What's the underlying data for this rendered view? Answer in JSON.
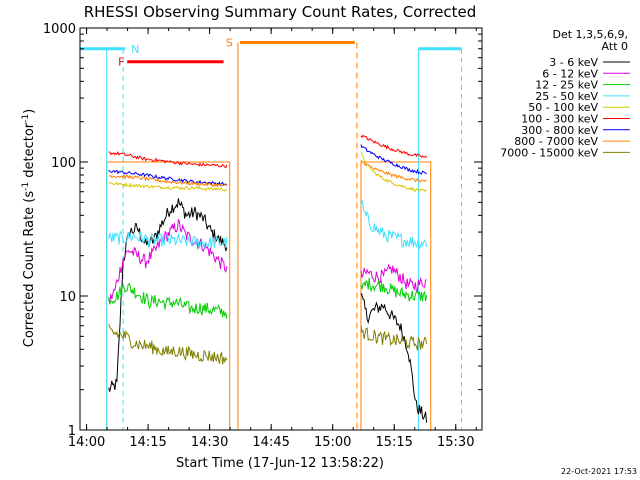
{
  "chart_data": {
    "type": "line",
    "title": "RHESSI Observing Summary Count Rates, Corrected",
    "xlabel": "Start Time (17-Jun-12 13:58:22)",
    "ylabel_main": "Corrected Count Rate (s",
    "ylabel_sup1": "-1",
    "ylabel_mid": " detector",
    "ylabel_sup2": "-1",
    "ylabel_end": ")",
    "x_start_label": "13:58:22",
    "xlim_minutes": [
      0,
      98
    ],
    "ylim": [
      1,
      1000
    ],
    "y_scale": "log",
    "x_ticks": [
      {
        "label": "14:00",
        "t": 1.6
      },
      {
        "label": "14:15",
        "t": 16.6
      },
      {
        "label": "14:30",
        "t": 31.6
      },
      {
        "label": "14:45",
        "t": 46.6
      },
      {
        "label": "15:00",
        "t": 61.6
      },
      {
        "label": "15:15",
        "t": 76.6
      },
      {
        "label": "15:30",
        "t": 91.6
      }
    ],
    "y_ticks": [
      {
        "label": "1",
        "v": 1
      },
      {
        "label": "10",
        "v": 10
      },
      {
        "label": "100",
        "v": 100
      },
      {
        "label": "1000",
        "v": 1000
      }
    ],
    "legend": {
      "header_line1": "Det 1,3,5,6,9,",
      "header_line2": "Att 0",
      "placement": "right"
    },
    "footer_date": "22-Oct-2021 17:53",
    "series": [
      {
        "name": "3 - 6 keV",
        "color": "#000000",
        "seg1": [
          [
            7.0,
            2.0
          ],
          [
            9.0,
            2.2
          ],
          [
            10.5,
            18
          ],
          [
            12,
            30
          ],
          [
            14,
            32
          ],
          [
            16,
            24
          ],
          [
            18,
            26
          ],
          [
            20,
            35
          ],
          [
            22,
            45
          ],
          [
            24,
            50
          ],
          [
            26,
            40
          ],
          [
            28,
            42
          ],
          [
            30,
            38
          ],
          [
            32,
            30
          ],
          [
            34,
            26
          ],
          [
            35.8,
            24
          ]
        ],
        "seg2": [
          [
            68.5,
            10
          ],
          [
            70,
            7
          ],
          [
            72,
            8
          ],
          [
            74,
            8.5
          ],
          [
            76,
            7
          ],
          [
            78,
            6
          ],
          [
            80,
            4
          ],
          [
            82,
            1.5
          ],
          [
            84.5,
            1.2
          ]
        ]
      },
      {
        "name": "6 - 12 keV",
        "color": "#e000e0",
        "seg1": [
          [
            7.0,
            9
          ],
          [
            8.5,
            11
          ],
          [
            10.5,
            19
          ],
          [
            12,
            22
          ],
          [
            14,
            20
          ],
          [
            16,
            18
          ],
          [
            18,
            21
          ],
          [
            20,
            26
          ],
          [
            22,
            30
          ],
          [
            24,
            34
          ],
          [
            26,
            28
          ],
          [
            28,
            26
          ],
          [
            30,
            24
          ],
          [
            32,
            21
          ],
          [
            34,
            18
          ],
          [
            35.8,
            16
          ]
        ],
        "seg2": [
          [
            68.5,
            14
          ],
          [
            70,
            15
          ],
          [
            72,
            14
          ],
          [
            74,
            14
          ],
          [
            76,
            16
          ],
          [
            78,
            14
          ],
          [
            80,
            12
          ],
          [
            82,
            12
          ],
          [
            84.5,
            13
          ]
        ]
      },
      {
        "name": "12 - 25 keV",
        "color": "#00d000",
        "seg1": [
          [
            7.0,
            9.5
          ],
          [
            9,
            10
          ],
          [
            11,
            12
          ],
          [
            13,
            11
          ],
          [
            15,
            10
          ],
          [
            17,
            9
          ],
          [
            19,
            9.2
          ],
          [
            21,
            8.8
          ],
          [
            23,
            9
          ],
          [
            25,
            8.5
          ],
          [
            27,
            8
          ],
          [
            29,
            8.2
          ],
          [
            31,
            8
          ],
          [
            33,
            7.8
          ],
          [
            35.8,
            7.5
          ]
        ],
        "seg2": [
          [
            68.5,
            11
          ],
          [
            70,
            12.5
          ],
          [
            72,
            12
          ],
          [
            74,
            12
          ],
          [
            76,
            11
          ],
          [
            78,
            10.5
          ],
          [
            80,
            10.2
          ],
          [
            82,
            10
          ],
          [
            84.5,
            10
          ]
        ]
      },
      {
        "name": "25 - 50 keV",
        "color": "#40e0ff",
        "seg1": [
          [
            7.0,
            27
          ],
          [
            9,
            27
          ],
          [
            11,
            27
          ],
          [
            13,
            28
          ],
          [
            15,
            27
          ],
          [
            17,
            26
          ],
          [
            19,
            26
          ],
          [
            21,
            26
          ],
          [
            23,
            26
          ],
          [
            25,
            25.5
          ],
          [
            27,
            25.5
          ],
          [
            29,
            25
          ],
          [
            31,
            25
          ],
          [
            33,
            25
          ],
          [
            35.8,
            25
          ]
        ],
        "seg2": [
          [
            68.5,
            50
          ],
          [
            69.5,
            40
          ],
          [
            71,
            34
          ],
          [
            73,
            30
          ],
          [
            75,
            28
          ],
          [
            77,
            27
          ],
          [
            79,
            26
          ],
          [
            81,
            25.5
          ],
          [
            84.5,
            25
          ]
        ]
      },
      {
        "name": "50 - 100 keV",
        "color": "#d8c800",
        "seg1": [
          [
            7.0,
            70
          ],
          [
            10,
            68
          ],
          [
            13,
            67
          ],
          [
            16,
            66
          ],
          [
            19,
            65
          ],
          [
            22,
            64.5
          ],
          [
            25,
            64
          ],
          [
            28,
            64
          ],
          [
            31,
            63
          ],
          [
            34,
            63
          ],
          [
            35.8,
            62
          ]
        ],
        "seg2": [
          [
            68.5,
            115
          ],
          [
            70,
            95
          ],
          [
            72,
            82
          ],
          [
            74,
            75
          ],
          [
            76,
            70
          ],
          [
            78,
            67
          ],
          [
            80,
            64
          ],
          [
            82,
            62
          ],
          [
            84.5,
            60
          ]
        ]
      },
      {
        "name": "100 - 300 keV",
        "color": "#ff0000",
        "seg1": [
          [
            7.0,
            117
          ],
          [
            10,
            115
          ],
          [
            13,
            110
          ],
          [
            16,
            105
          ],
          [
            19,
            103
          ],
          [
            22,
            100
          ],
          [
            25,
            98
          ],
          [
            28,
            96
          ],
          [
            31,
            95
          ],
          [
            34,
            94
          ],
          [
            35.8,
            93
          ]
        ],
        "seg2": [
          [
            68.5,
            158
          ],
          [
            70,
            150
          ],
          [
            72,
            140
          ],
          [
            74,
            132
          ],
          [
            76,
            125
          ],
          [
            78,
            120
          ],
          [
            80,
            115
          ],
          [
            82,
            112
          ],
          [
            84.5,
            108
          ]
        ]
      },
      {
        "name": "300 - 800 keV",
        "color": "#0000ff",
        "seg1": [
          [
            7.0,
            86
          ],
          [
            10,
            84
          ],
          [
            13,
            82
          ],
          [
            16,
            80
          ],
          [
            19,
            77
          ],
          [
            22,
            75
          ],
          [
            25,
            73
          ],
          [
            28,
            71
          ],
          [
            31,
            70
          ],
          [
            34,
            69
          ],
          [
            35.8,
            68
          ]
        ],
        "seg2": [
          [
            68.5,
            132
          ],
          [
            70,
            122
          ],
          [
            72,
            112
          ],
          [
            74,
            104
          ],
          [
            76,
            98
          ],
          [
            78,
            93
          ],
          [
            80,
            88
          ],
          [
            82,
            85
          ],
          [
            84.5,
            82
          ]
        ]
      },
      {
        "name": "800 - 7000 keV",
        "color": "#ff8000",
        "seg1": [
          [
            7.0,
            79
          ],
          [
            10,
            78
          ],
          [
            13,
            77
          ],
          [
            16,
            75
          ],
          [
            19,
            73
          ],
          [
            22,
            71
          ],
          [
            25,
            70
          ],
          [
            28,
            69
          ],
          [
            31,
            68
          ],
          [
            34,
            67
          ],
          [
            35.8,
            66
          ]
        ],
        "seg2": [
          [
            68.5,
            102
          ],
          [
            70,
            95
          ],
          [
            72,
            88
          ],
          [
            74,
            84
          ],
          [
            76,
            80
          ],
          [
            78,
            77
          ],
          [
            80,
            75
          ],
          [
            82,
            73
          ],
          [
            84.5,
            72
          ]
        ]
      },
      {
        "name": "7000 - 15000 keV",
        "color": "#808000",
        "seg1": [
          [
            7.0,
            5.5
          ],
          [
            9,
            5.2
          ],
          [
            11,
            5.0
          ],
          [
            13,
            4.5
          ],
          [
            15,
            4.3
          ],
          [
            17,
            4.2
          ],
          [
            19,
            4.0
          ],
          [
            21,
            3.8
          ],
          [
            23,
            3.9
          ],
          [
            25,
            3.8
          ],
          [
            27,
            3.7
          ],
          [
            29,
            3.6
          ],
          [
            31,
            3.6
          ],
          [
            33,
            3.5
          ],
          [
            35.8,
            3.4
          ]
        ],
        "seg2": [
          [
            68.5,
            5.5
          ],
          [
            70,
            5.2
          ],
          [
            72,
            5
          ],
          [
            74,
            4.8
          ],
          [
            76,
            4.7
          ],
          [
            78,
            4.6
          ],
          [
            80,
            4.5
          ],
          [
            82,
            4.4
          ],
          [
            84.5,
            4.4
          ]
        ]
      }
    ],
    "annotations": {
      "night_label": "N",
      "flare_label": "F",
      "saa_label": "S",
      "night_color": "#40e0ff",
      "flare_color": "#ff0000",
      "saa_color": "#ff8000",
      "night_bars": [
        [
          0,
          11
        ],
        [
          82.5,
          93
        ]
      ],
      "night_dashed_x": [
        10.5,
        93
      ],
      "night_solid_x": [
        0,
        6.5,
        82.5
      ],
      "night_y": 700,
      "flare_bar": [
        11.5,
        35
      ],
      "flare_y": 560,
      "saa_bar": [
        39,
        67
      ],
      "saa_y": 780,
      "saa_solid_x": 38.5,
      "saa_dashed_x": 67.5,
      "orange_boxes": [
        [
          6.5,
          36.5
        ],
        [
          68.5,
          85.5
        ]
      ],
      "orange_box_top": 100
    }
  }
}
